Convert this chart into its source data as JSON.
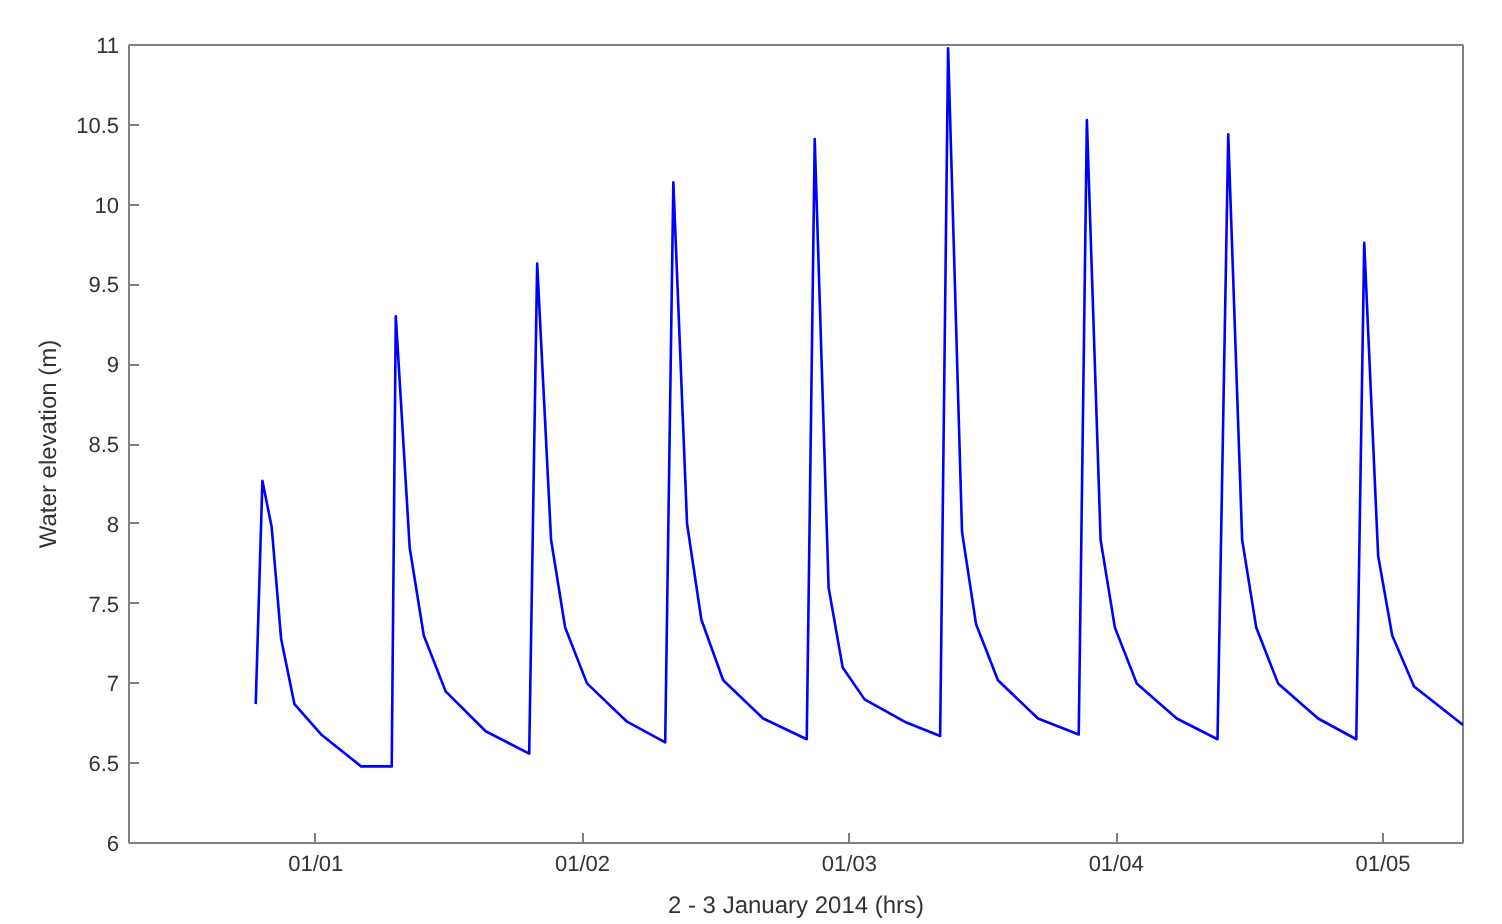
{
  "chart_data": {
    "type": "line",
    "xlabel": "2 - 3 January 2014 (hrs)",
    "ylabel": "Water elevation (m)",
    "xlim": [
      "2013-12-31T07:12",
      "2014-01-05T07:12"
    ],
    "ylim": [
      6,
      11
    ],
    "xticks": [
      {
        "value": "2014-01-01",
        "label": "01/01"
      },
      {
        "value": "2014-01-02",
        "label": "01/02"
      },
      {
        "value": "2014-01-03",
        "label": "01/03"
      },
      {
        "value": "2014-01-04",
        "label": "01/04"
      },
      {
        "value": "2014-01-05",
        "label": "01/05"
      }
    ],
    "yticks": [
      6,
      6.5,
      7,
      7.5,
      8,
      8.5,
      9,
      9.5,
      10,
      10.5,
      11
    ],
    "grid": false,
    "marker": "none",
    "line_style": "solid",
    "series": [
      {
        "color": "#0000ff",
        "x": [
          "2013-12-31T18:36",
          "2013-12-31T19:12",
          "2013-12-31T20:02",
          "2013-12-31T20:53",
          "2013-12-31T22:05",
          "2014-01-01T00:29",
          "2014-01-01T04:05",
          "2014-01-01T06:50",
          "2014-01-01T07:12",
          "2014-01-01T08:27",
          "2014-01-01T09:43",
          "2014-01-01T11:41",
          "2014-01-01T15:17",
          "2014-01-01T19:12",
          "2014-01-01T19:55",
          "2014-01-01T21:10",
          "2014-01-01T22:26",
          "2014-01-02T00:24",
          "2014-01-02T04:00",
          "2014-01-02T07:26",
          "2014-01-02T08:10",
          "2014-01-02T09:24",
          "2014-01-02T10:41",
          "2014-01-02T12:39",
          "2014-01-02T16:15",
          "2014-01-02T20:10",
          "2014-01-02T20:53",
          "2014-01-02T22:08",
          "2014-01-02T23:24",
          "2014-01-03T01:22",
          "2014-01-03T04:58",
          "2014-01-03T08:10",
          "2014-01-03T08:53",
          "2014-01-03T10:08",
          "2014-01-03T11:24",
          "2014-01-03T13:22",
          "2014-01-03T16:58",
          "2014-01-03T20:38",
          "2014-01-03T21:22",
          "2014-01-03T22:36",
          "2014-01-03T23:53",
          "2014-01-04T01:51",
          "2014-01-04T05:27",
          "2014-01-04T09:07",
          "2014-01-04T10:05",
          "2014-01-04T11:20",
          "2014-01-04T12:36",
          "2014-01-04T14:34",
          "2014-01-04T18:10",
          "2014-01-04T21:36",
          "2014-01-04T22:19",
          "2014-01-04T23:34",
          "2014-01-05T00:50",
          "2014-01-05T02:48",
          "2014-01-05T07:12"
        ],
        "values": [
          6.87,
          8.27,
          7.98,
          7.28,
          6.87,
          6.68,
          6.48,
          6.48,
          9.3,
          7.85,
          7.3,
          6.95,
          6.7,
          6.56,
          9.63,
          7.9,
          7.35,
          7.0,
          6.76,
          6.63,
          10.14,
          8.0,
          7.4,
          7.02,
          6.78,
          6.65,
          10.41,
          7.6,
          7.1,
          6.9,
          6.76,
          6.67,
          10.98,
          7.95,
          7.37,
          7.02,
          6.78,
          6.68,
          10.53,
          7.9,
          7.35,
          7.0,
          6.78,
          6.65,
          10.44,
          7.9,
          7.35,
          7.0,
          6.78,
          6.65,
          9.76,
          7.8,
          7.3,
          6.98,
          6.74
        ]
      }
    ]
  }
}
